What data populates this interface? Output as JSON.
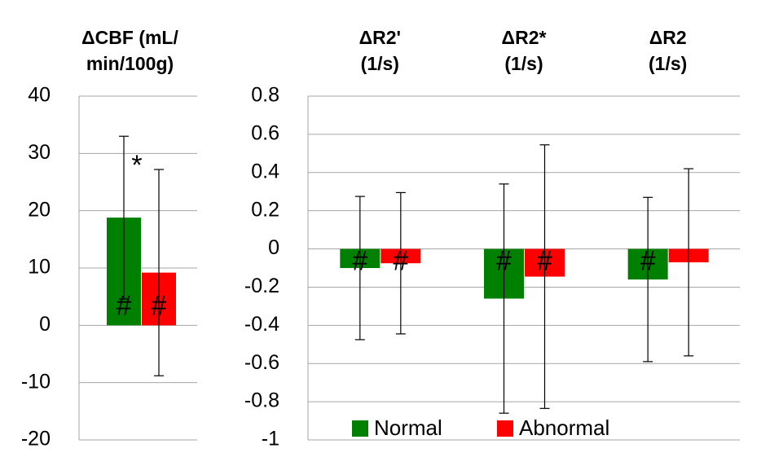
{
  "chart_data": [
    {
      "type": "bar",
      "title": [
        "ΔCBF (mL/",
        "min/100g)"
      ],
      "ylim": [
        -20,
        40
      ],
      "yticks": [
        -20,
        -10,
        0,
        10,
        20,
        30,
        40
      ],
      "grid": true,
      "annotation": "*",
      "series": [
        {
          "name": "Normal",
          "color": "#008000",
          "values": [
            18.8
          ],
          "errors": [
            14.2
          ],
          "markers": [
            "#"
          ]
        },
        {
          "name": "Abnormal",
          "color": "#ff0000",
          "values": [
            9.2
          ],
          "errors": [
            18
          ],
          "markers": [
            "#"
          ]
        }
      ]
    },
    {
      "type": "bar",
      "categories": [
        [
          "ΔR2'",
          "(1/s)"
        ],
        [
          "ΔR2*",
          "(1/s)"
        ],
        [
          "ΔR2",
          "(1/s)"
        ]
      ],
      "ylim": [
        -1,
        0.8
      ],
      "yticks": [
        -1,
        -0.8,
        -0.6,
        -0.4,
        -0.2,
        0,
        0.2,
        0.4,
        0.6,
        0.8
      ],
      "grid": true,
      "legend": "bottom",
      "series": [
        {
          "name": "Normal",
          "color": "#008000",
          "values": [
            -0.1,
            -0.26,
            -0.16
          ],
          "errors": [
            0.375,
            0.6,
            0.43
          ],
          "markers": [
            "#",
            "#",
            "#"
          ]
        },
        {
          "name": "Abnormal",
          "color": "#ff0000",
          "values": [
            -0.075,
            -0.145,
            -0.07
          ],
          "errors": [
            0.37,
            0.69,
            0.49
          ],
          "markers": [
            "#",
            "#",
            null
          ]
        }
      ]
    }
  ]
}
